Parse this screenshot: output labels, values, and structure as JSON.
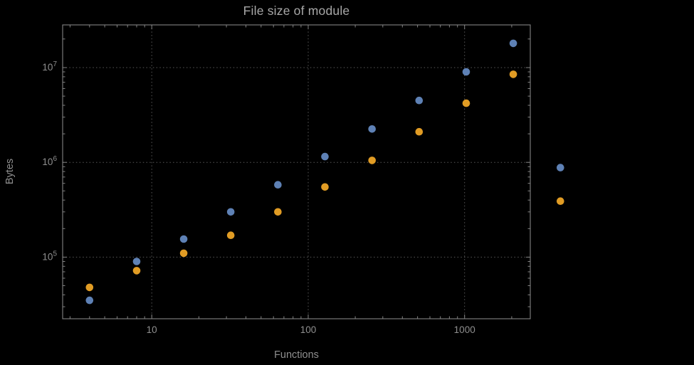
{
  "chart_data": {
    "type": "scatter",
    "title": "File size of module",
    "xlabel": "Functions",
    "ylabel": "Bytes",
    "x_scale": "log10",
    "y_scale": "log10",
    "grid": "dotted-at-decades",
    "legend": "none",
    "x": [
      4,
      8,
      16,
      32,
      64,
      128,
      256,
      512,
      1024,
      2048,
      4096
    ],
    "series": [
      {
        "name": "blue",
        "color": "#5e81b5",
        "values": [
          35000,
          90000,
          155000,
          300000,
          580000,
          1150000,
          2250000,
          4500000,
          9000000,
          18000000,
          880000
        ]
      },
      {
        "name": "orange",
        "color": "#e19c24",
        "values": [
          48000,
          72000,
          110000,
          170000,
          300000,
          550000,
          1050000,
          2100000,
          4200000,
          8500000,
          390000
        ]
      }
    ],
    "x_ticks": [
      {
        "value": 10,
        "label": "10"
      },
      {
        "value": 100,
        "label": "100"
      },
      {
        "value": 1000,
        "label": "1000"
      }
    ],
    "y_ticks": [
      {
        "value": 100000,
        "base": "10",
        "exponent": "5"
      },
      {
        "value": 1000000,
        "base": "10",
        "exponent": "6"
      },
      {
        "value": 10000000,
        "base": "10",
        "exponent": "7"
      }
    ],
    "xlim_log10": [
      0.43,
      3.42
    ],
    "ylim_log10": [
      4.35,
      7.45
    ],
    "colors": {
      "background": "#000000",
      "title_text": "#a8a8a8",
      "axis_text": "#8f8f8f",
      "frame": "#848484",
      "gridline": "#585858"
    }
  }
}
